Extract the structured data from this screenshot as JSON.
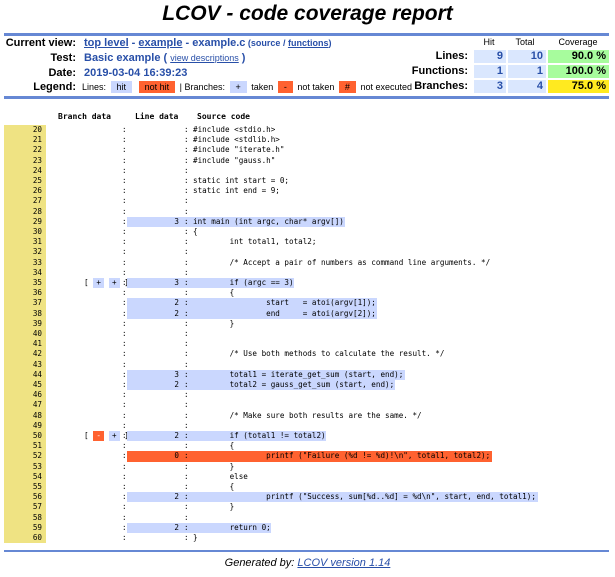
{
  "title": "LCOV - code coverage report",
  "header": {
    "current_view_label": "Current view:",
    "breadcrumb": {
      "top_level": "top level",
      "sep1": " - ",
      "dir": "example",
      "sep2": " - ",
      "file": "example.c",
      "view_open": " (",
      "source": "source",
      "slash": " / ",
      "functions": "functions",
      "view_close": ")"
    },
    "test_label": "Test:",
    "test_value": "Basic example",
    "test_paren_open": " ( ",
    "view_descriptions": "view descriptions",
    "test_paren_close": " )",
    "date_label": "Date:",
    "date_value": "2019-03-04 16:39:23",
    "legend_label": "Legend:",
    "legend": {
      "lines_label": "Lines:",
      "hit": "hit",
      "not_hit": "not hit",
      "branches_label": "| Branches:",
      "taken_symbol": "+",
      "taken": "taken",
      "not_taken_symbol": "-",
      "not_taken": "not taken",
      "not_executed_symbol": "#",
      "not_executed": "not executed"
    }
  },
  "stats": {
    "col_hit": "Hit",
    "col_total": "Total",
    "col_coverage": "Coverage",
    "rows": [
      {
        "label": "Lines:",
        "hit": "9",
        "total": "10",
        "coverage": "90.0 %"
      },
      {
        "label": "Functions:",
        "hit": "1",
        "total": "1",
        "coverage": "100.0 %"
      },
      {
        "label": "Branches:",
        "hit": "3",
        "total": "4",
        "coverage": "75.0 %"
      }
    ]
  },
  "code": {
    "col_branch": "Branch data",
    "col_line": "Line data",
    "col_source": "Source code",
    "lines": [
      {
        "n": "20",
        "count": "",
        "src": "#include <stdio.h>"
      },
      {
        "n": "21",
        "count": "",
        "src": "#include <stdlib.h>"
      },
      {
        "n": "22",
        "count": "",
        "src": "#include \"iterate.h\""
      },
      {
        "n": "23",
        "count": "",
        "src": "#include \"gauss.h\""
      },
      {
        "n": "24",
        "count": "",
        "src": ""
      },
      {
        "n": "25",
        "count": "",
        "src": "static int start = 0;"
      },
      {
        "n": "26",
        "count": "",
        "src": "static int end = 9;"
      },
      {
        "n": "27",
        "count": "",
        "src": ""
      },
      {
        "n": "28",
        "count": "",
        "src": ""
      },
      {
        "n": "29",
        "count": "3",
        "status": "hit",
        "src": "int main (int argc, char* argv[])"
      },
      {
        "n": "30",
        "count": "",
        "src": "{"
      },
      {
        "n": "31",
        "count": "",
        "src": "        int total1, total2;"
      },
      {
        "n": "32",
        "count": "",
        "src": ""
      },
      {
        "n": "33",
        "count": "",
        "src": "        /* Accept a pair of numbers as command line arguments. */"
      },
      {
        "n": "34",
        "count": "",
        "src": ""
      },
      {
        "n": "35",
        "count": "3",
        "status": "hit",
        "branches": [
          "+",
          "+"
        ],
        "src": "        if (argc == 3)"
      },
      {
        "n": "36",
        "count": "",
        "src": "        {"
      },
      {
        "n": "37",
        "count": "2",
        "status": "hit",
        "src": "                start   = atoi(argv[1]);"
      },
      {
        "n": "38",
        "count": "2",
        "status": "hit",
        "src": "                end     = atoi(argv[2]);"
      },
      {
        "n": "39",
        "count": "",
        "src": "        }"
      },
      {
        "n": "40",
        "count": "",
        "src": ""
      },
      {
        "n": "41",
        "count": "",
        "src": ""
      },
      {
        "n": "42",
        "count": "",
        "src": "        /* Use both methods to calculate the result. */"
      },
      {
        "n": "43",
        "count": "",
        "src": ""
      },
      {
        "n": "44",
        "count": "3",
        "status": "hit",
        "src": "        total1 = iterate_get_sum (start, end);"
      },
      {
        "n": "45",
        "count": "2",
        "status": "hit",
        "src": "        total2 = gauss_get_sum (start, end);"
      },
      {
        "n": "46",
        "count": "",
        "src": ""
      },
      {
        "n": "47",
        "count": "",
        "src": ""
      },
      {
        "n": "48",
        "count": "",
        "src": "        /* Make sure both results are the same. */"
      },
      {
        "n": "49",
        "count": "",
        "src": ""
      },
      {
        "n": "50",
        "count": "2",
        "status": "hit",
        "branches": [
          "-",
          "+"
        ],
        "src": "        if (total1 != total2)"
      },
      {
        "n": "51",
        "count": "",
        "src": "        {"
      },
      {
        "n": "52",
        "count": "0",
        "status": "nohit",
        "src": "                printf (\"Failure (%d != %d)!\\n\", total1, total2);"
      },
      {
        "n": "53",
        "count": "",
        "src": "        }"
      },
      {
        "n": "54",
        "count": "",
        "src": "        else"
      },
      {
        "n": "55",
        "count": "",
        "src": "        {"
      },
      {
        "n": "56",
        "count": "2",
        "status": "hit",
        "src": "                printf (\"Success, sum[%d..%d] = %d\\n\", start, end, total1);"
      },
      {
        "n": "57",
        "count": "",
        "src": "        }"
      },
      {
        "n": "58",
        "count": "",
        "src": ""
      },
      {
        "n": "59",
        "count": "2",
        "status": "hit",
        "src": "        return 0;"
      },
      {
        "n": "60",
        "count": "",
        "src": "}"
      }
    ]
  },
  "footer": {
    "generated_by": "Generated by: ",
    "lcov_link": "LCOV version 1.14"
  },
  "colors": {
    "rule": "#6688d4",
    "link": "#284fa8",
    "hit_bg": "#cad7fe",
    "nohit_bg": "#ff6230",
    "line_num_bg": "#efe383",
    "coverage_high": "#a7fc9d",
    "coverage_medium": "#ffea20",
    "stat_cell_bg": "#dae7fe"
  }
}
